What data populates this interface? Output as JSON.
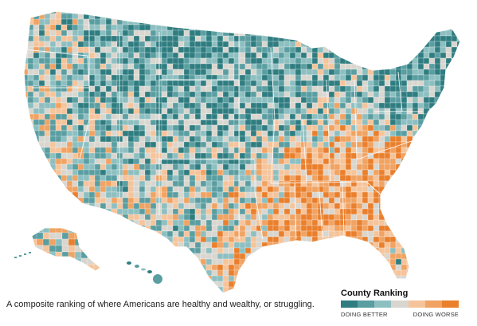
{
  "legend": {
    "title": "County Ranking",
    "better_label": "DOING BETTER",
    "worse_label": "DOING WORSE",
    "colors": [
      "#2f7d80",
      "#5a9ea1",
      "#8dbfc1",
      "#d8d6cf",
      "#f5c49b",
      "#f0a362",
      "#ea7f2c"
    ]
  },
  "caption": "A composite ranking of where Americans are healthy and wealthy, or struggling.",
  "regions": [
    {
      "name": "pacific-northwest",
      "tone": "mixed-light"
    },
    {
      "name": "california",
      "tone": "mixed"
    },
    {
      "name": "mountain-west",
      "tone": "better"
    },
    {
      "name": "great-plains",
      "tone": "better"
    },
    {
      "name": "midwest",
      "tone": "mixed-better"
    },
    {
      "name": "northeast",
      "tone": "better"
    },
    {
      "name": "southwest",
      "tone": "mixed"
    },
    {
      "name": "texas",
      "tone": "mixed"
    },
    {
      "name": "deep-south",
      "tone": "worse"
    },
    {
      "name": "appalachia",
      "tone": "worse"
    },
    {
      "name": "florida",
      "tone": "mixed"
    },
    {
      "name": "alaska",
      "tone": "mixed"
    },
    {
      "name": "hawaii",
      "tone": "better"
    }
  ]
}
